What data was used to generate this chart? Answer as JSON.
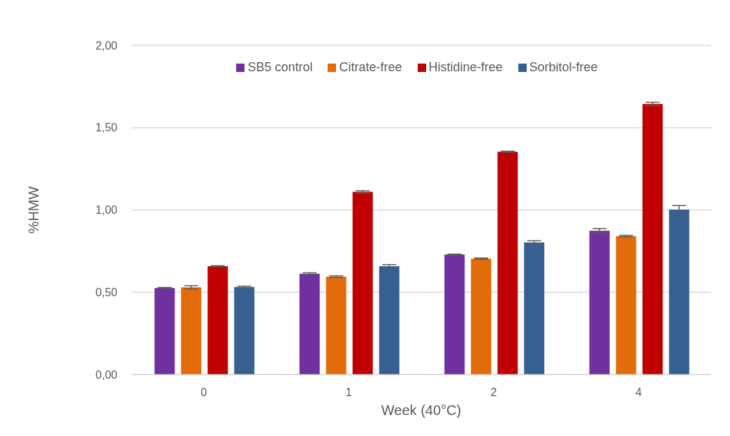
{
  "chart_data": {
    "type": "bar",
    "xlabel": "Week (40°C)",
    "ylabel": "%HMW",
    "categories": [
      "0",
      "1",
      "2",
      "4"
    ],
    "series": [
      {
        "name": "SB5 control",
        "color": "#7030a0",
        "values": [
          0.526,
          0.613,
          0.729,
          0.874
        ],
        "errors": [
          0.003,
          0.005,
          0.003,
          0.013
        ]
      },
      {
        "name": "Citrate-free",
        "color": "#e36c0a",
        "values": [
          0.53,
          0.595,
          0.704,
          0.841
        ],
        "errors": [
          0.01,
          0.005,
          0.004,
          0.005
        ]
      },
      {
        "name": "Histidine-free",
        "color": "#c00000",
        "values": [
          0.658,
          1.11,
          1.354,
          1.644
        ],
        "errors": [
          0.003,
          0.007,
          0.003,
          0.01
        ]
      },
      {
        "name": "Sorbitol-free",
        "color": "#376092",
        "values": [
          0.532,
          0.658,
          0.803,
          1.002
        ],
        "errors": [
          0.005,
          0.01,
          0.01,
          0.025
        ]
      }
    ],
    "ylim": [
      0,
      2
    ],
    "yticks": [
      {
        "value": 0,
        "label": "0,00"
      },
      {
        "value": 0.5,
        "label": "0,50"
      },
      {
        "value": 1,
        "label": "1,00"
      },
      {
        "value": 1.5,
        "label": "1,50"
      },
      {
        "value": 2,
        "label": "2,00"
      }
    ],
    "grid": "y",
    "legend": "top"
  }
}
